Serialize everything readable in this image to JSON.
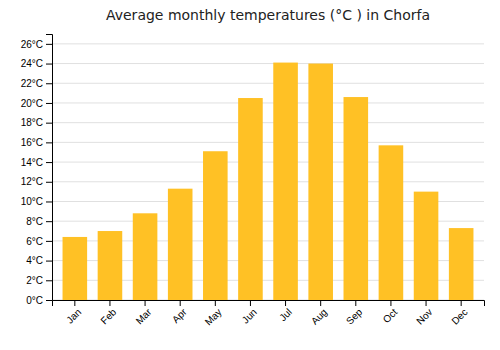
{
  "chart_data": {
    "type": "bar",
    "title": "Average monthly temperatures (°C ) in Chorfa",
    "categories": [
      "Jan",
      "Feb",
      "Mar",
      "Apr",
      "May",
      "Jun",
      "Jul",
      "Aug",
      "Sep",
      "Oct",
      "Nov",
      "Dec"
    ],
    "values": [
      6.4,
      7.0,
      8.8,
      11.3,
      15.1,
      20.5,
      24.1,
      24.0,
      20.6,
      15.7,
      11.0,
      7.3
    ],
    "color": "#FFC125",
    "ylim": [
      0,
      27
    ],
    "yticks": [
      {
        "value": 0,
        "label": "0°C"
      },
      {
        "value": 2,
        "label": "2°C"
      },
      {
        "value": 4,
        "label": "4°C"
      },
      {
        "value": 6,
        "label": "6°C"
      },
      {
        "value": 8,
        "label": "8°C"
      },
      {
        "value": 10,
        "label": "10°C"
      },
      {
        "value": 12,
        "label": "12°C"
      },
      {
        "value": 14,
        "label": "14°C"
      },
      {
        "value": 16,
        "label": "16°C"
      },
      {
        "value": 18,
        "label": "18°C"
      },
      {
        "value": 20,
        "label": "20°C"
      },
      {
        "value": 22,
        "label": "22°C"
      },
      {
        "value": 24,
        "label": "24°C"
      },
      {
        "value": 26,
        "label": "26°C"
      }
    ],
    "grid": true
  }
}
